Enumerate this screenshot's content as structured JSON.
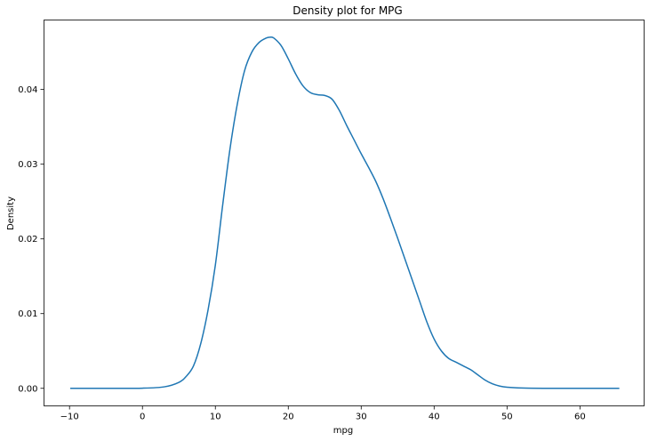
{
  "chart_data": {
    "type": "line",
    "title": "Density plot for MPG",
    "xlabel": "mpg",
    "ylabel": "Density",
    "xlim": [
      -13.5,
      68.8
    ],
    "ylim": [
      -0.00235,
      0.0493
    ],
    "xticks": [
      -10,
      0,
      10,
      20,
      30,
      40,
      50,
      60
    ],
    "xtick_labels": [
      "−10",
      "0",
      "10",
      "20",
      "30",
      "40",
      "50",
      "60"
    ],
    "yticks": [
      0.0,
      0.01,
      0.02,
      0.03,
      0.04
    ],
    "ytick_labels": [
      "0.00",
      "0.01",
      "0.02",
      "0.03",
      "0.04"
    ],
    "grid": false,
    "series": [
      {
        "color": "#1f77b4",
        "x": [
          -9.9,
          -5,
          0,
          3,
          5,
          6,
          7,
          8,
          9,
          10,
          11,
          12,
          13,
          14,
          15,
          16,
          17,
          17.5,
          18,
          19,
          20,
          21,
          22,
          23,
          24,
          25,
          26,
          27,
          28,
          29,
          30,
          31,
          32,
          33,
          34,
          35,
          36,
          37,
          38,
          39,
          40,
          41,
          42,
          43,
          44,
          45,
          46,
          47,
          48,
          49,
          50,
          52,
          55,
          60,
          65.4
        ],
        "y": [
          0.0,
          0.0,
          2e-05,
          0.0002,
          0.0008,
          0.0016,
          0.003,
          0.006,
          0.0105,
          0.0165,
          0.0245,
          0.032,
          0.038,
          0.0425,
          0.045,
          0.0463,
          0.0469,
          0.047,
          0.0469,
          0.0459,
          0.0441,
          0.0421,
          0.0405,
          0.0396,
          0.0393,
          0.0392,
          0.0387,
          0.0372,
          0.0352,
          0.0333,
          0.0314,
          0.0296,
          0.0277,
          0.0254,
          0.0228,
          0.0201,
          0.0173,
          0.0145,
          0.0117,
          0.0089,
          0.0066,
          0.005,
          0.004,
          0.0035,
          0.003,
          0.0025,
          0.0018,
          0.0011,
          0.0006,
          0.0003,
          0.00015,
          4e-05,
          0.0,
          0.0,
          0.0
        ]
      }
    ]
  }
}
